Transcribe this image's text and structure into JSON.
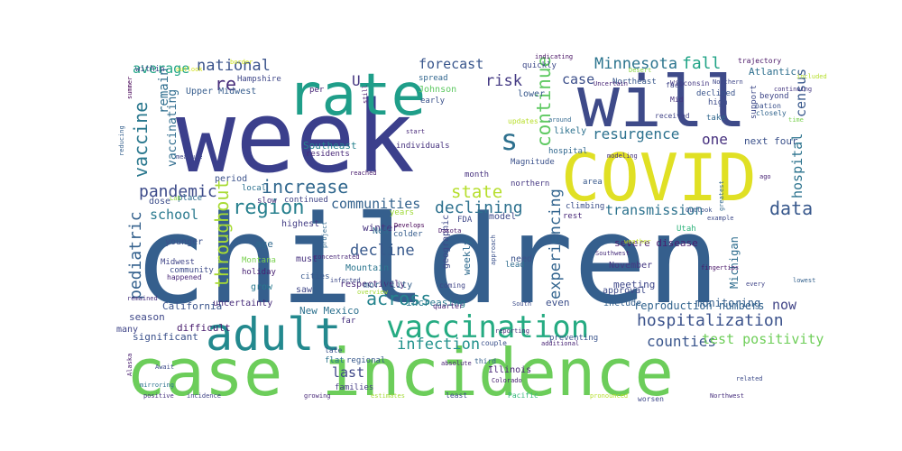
{
  "chart_data": {
    "type": "wordcloud",
    "colormap": "viridis",
    "background": "#ffffff",
    "words": [
      {
        "text": "week",
        "color": "#3b3f8c"
      },
      {
        "text": "children",
        "color": "#355f8d"
      },
      {
        "text": "case incidence",
        "color": "#6ccd5a"
      },
      {
        "text": "COVID",
        "color": "#e0e024"
      },
      {
        "text": "will",
        "color": "#3e4a89"
      },
      {
        "text": "rate",
        "color": "#1f9e89"
      },
      {
        "text": "adult",
        "color": "#23898e"
      },
      {
        "text": "vaccination",
        "color": "#25ab82"
      },
      {
        "text": "s",
        "color": "#2d708e"
      },
      {
        "text": "hospitalization",
        "color": "#3b528b"
      },
      {
        "text": "increase",
        "color": "#31688e"
      },
      {
        "text": "region",
        "color": "#27808e"
      },
      {
        "text": "pandemic",
        "color": "#3e4c8a"
      },
      {
        "text": "vaccine",
        "color": "#2a788e"
      },
      {
        "text": "national",
        "color": "#3a538b"
      },
      {
        "text": "forecast",
        "color": "#39568c"
      },
      {
        "text": "risk",
        "color": "#443a83"
      },
      {
        "text": "Minnesota",
        "color": "#2b748e"
      },
      {
        "text": "fall",
        "color": "#20a386"
      },
      {
        "text": "case",
        "color": "#3c4f8a"
      },
      {
        "text": "continue",
        "color": "#5ec962"
      },
      {
        "text": "resurgence",
        "color": "#2c718e"
      },
      {
        "text": "one",
        "color": "#46307e"
      },
      {
        "text": "state",
        "color": "#b5de2b"
      },
      {
        "text": "communities",
        "color": "#33628d"
      },
      {
        "text": "declining",
        "color": "#2d718e"
      },
      {
        "text": "transmission",
        "color": "#2c728e"
      },
      {
        "text": "data",
        "color": "#38588c"
      },
      {
        "text": "experiencing",
        "color": "#32648e"
      },
      {
        "text": "throughout",
        "color": "#a8db34"
      },
      {
        "text": "pediatric",
        "color": "#34618d"
      },
      {
        "text": "school",
        "color": "#29798e"
      },
      {
        "text": "decline",
        "color": "#38598c"
      },
      {
        "text": "across",
        "color": "#25848e"
      },
      {
        "text": "infection",
        "color": "#21918c"
      },
      {
        "text": "counties",
        "color": "#39558c"
      },
      {
        "text": "test positivity",
        "color": "#6ece58"
      },
      {
        "text": "now",
        "color": "#414487"
      },
      {
        "text": "last",
        "color": "#3f4788"
      },
      {
        "text": "average",
        "color": "#21a685"
      },
      {
        "text": "remain",
        "color": "#2e6e8e"
      },
      {
        "text": "vaccinating",
        "color": "#2f6c8e"
      },
      {
        "text": "re",
        "color": "#472d7b"
      },
      {
        "text": "census",
        "color": "#38588c"
      },
      {
        "text": "hospital",
        "color": "#2c738e"
      },
      {
        "text": "Upper Midwest",
        "color": "#365c8d"
      },
      {
        "text": "California",
        "color": "#3a548c"
      },
      {
        "text": "New Mexico",
        "color": "#2c718e"
      },
      {
        "text": "Southeast",
        "color": "#26828e"
      },
      {
        "text": "U",
        "color": "#453781"
      },
      {
        "text": "Magnitude",
        "color": "#3b518b"
      },
      {
        "text": "reproduction numbers",
        "color": "#32648e"
      },
      {
        "text": "monitoring",
        "color": "#35608d"
      },
      {
        "text": "severe disease",
        "color": "#481f70"
      },
      {
        "text": "Michigan",
        "color": "#2e6d8e"
      },
      {
        "text": "Illinois",
        "color": "#482576"
      },
      {
        "text": "next four",
        "color": "#3b518b"
      },
      {
        "text": "weekly",
        "color": "#2f6b8e"
      },
      {
        "text": "meeting",
        "color": "#3f4889"
      },
      {
        "text": "respectively",
        "color": "#482878"
      },
      {
        "text": "geographic",
        "color": "#3e4989"
      },
      {
        "text": "winter",
        "color": "#46337f"
      },
      {
        "text": "Mountain",
        "color": "#2b758e"
      },
      {
        "text": "significant",
        "color": "#3b518b"
      },
      {
        "text": "uncertainty",
        "color": "#472c7a"
      },
      {
        "text": "difficult",
        "color": "#481b6d"
      },
      {
        "text": "season",
        "color": "#3f4889"
      },
      {
        "text": "many",
        "color": "#404688"
      },
      {
        "text": "even",
        "color": "#3c4f8a"
      },
      {
        "text": "include",
        "color": "#35608d"
      },
      {
        "text": "approval",
        "color": "#3e4a89"
      },
      {
        "text": "November",
        "color": "#453882"
      },
      {
        "text": "increasing",
        "color": "#2a788e"
      },
      {
        "text": "mortality",
        "color": "#34618d"
      },
      {
        "text": "cities",
        "color": "#38588c"
      },
      {
        "text": "saw",
        "color": "#3f4788"
      },
      {
        "text": "must",
        "color": "#46307e"
      },
      {
        "text": "holiday",
        "color": "#482173"
      },
      {
        "text": "grow",
        "color": "#29798e"
      },
      {
        "text": "Montana",
        "color": "#7ad151"
      },
      {
        "text": "community",
        "color": "#3e4c8a"
      },
      {
        "text": "happened",
        "color": "#482677"
      },
      {
        "text": "Midwest",
        "color": "#404588"
      },
      {
        "text": "younger",
        "color": "#3b518b"
      },
      {
        "text": "age",
        "color": "#30698e"
      },
      {
        "text": "highest",
        "color": "#433d84"
      },
      {
        "text": "local",
        "color": "#2c718e"
      },
      {
        "text": "slow",
        "color": "#46337f"
      },
      {
        "text": "continued",
        "color": "#414487"
      },
      {
        "text": "period",
        "color": "#3b528b"
      },
      {
        "text": "place",
        "color": "#2e6e8e"
      },
      {
        "text": "dose",
        "color": "#3d4e8a"
      },
      {
        "text": "Lab",
        "color": "#8fd744"
      },
      {
        "text": "years",
        "color": "#a0da39"
      },
      {
        "text": "colder",
        "color": "#365d8d"
      },
      {
        "text": "New",
        "color": "#30698e"
      },
      {
        "text": "FDA",
        "color": "#3f4889"
      },
      {
        "text": "Dakota",
        "color": "#481769"
      },
      {
        "text": "model",
        "color": "#3e4989"
      },
      {
        "text": "need",
        "color": "#3b528b"
      },
      {
        "text": "lead",
        "color": "#2f6c8e"
      },
      {
        "text": "rest",
        "color": "#482878"
      },
      {
        "text": "climbing",
        "color": "#3c4f8a"
      },
      {
        "text": "area",
        "color": "#38598c"
      },
      {
        "text": "hospital",
        "color": "#31688e"
      },
      {
        "text": "northern",
        "color": "#453781"
      },
      {
        "text": "month",
        "color": "#46307e"
      },
      {
        "text": "individuals",
        "color": "#46327e"
      },
      {
        "text": "residents",
        "color": "#482878"
      },
      {
        "text": "likely",
        "color": "#2c718e"
      },
      {
        "text": "updates",
        "color": "#b8de29"
      },
      {
        "text": "lower",
        "color": "#38598c"
      },
      {
        "text": "quickly",
        "color": "#3e4a89"
      },
      {
        "text": "spread",
        "color": "#31668e"
      },
      {
        "text": "Johnson",
        "color": "#5ec962"
      },
      {
        "text": "early",
        "color": "#3b528b"
      },
      {
        "text": "per",
        "color": "#482677"
      },
      {
        "text": "within",
        "color": "#3e4989"
      },
      {
        "text": "summer",
        "color": "#440154"
      },
      {
        "text": "Hampshire",
        "color": "#3f4788"
      },
      {
        "text": "Northeast",
        "color": "#38588c"
      },
      {
        "text": "Atlantic",
        "color": "#2e6f8e"
      },
      {
        "text": "trajectory",
        "color": "#471365"
      },
      {
        "text": "Wisconsin",
        "color": "#453882"
      },
      {
        "text": "fact",
        "color": "#404588"
      },
      {
        "text": "Mid",
        "color": "#46327e"
      },
      {
        "text": "high",
        "color": "#3d4d8a"
      },
      {
        "text": "declined",
        "color": "#3a548c"
      },
      {
        "text": "received",
        "color": "#414487"
      },
      {
        "text": "take",
        "color": "#31688e"
      },
      {
        "text": "support",
        "color": "#3e4a89"
      },
      {
        "text": "nation",
        "color": "#3b518b"
      },
      {
        "text": "closely",
        "color": "#32658e"
      },
      {
        "text": "beyond",
        "color": "#3f4788"
      },
      {
        "text": "Uncertain",
        "color": "#482475"
      },
      {
        "text": "Desert",
        "color": "#8bd646"
      },
      {
        "text": "indicating",
        "color": "#471063"
      },
      {
        "text": "around",
        "color": "#31688e"
      },
      {
        "text": "still",
        "color": "#481a6c"
      },
      {
        "text": "start",
        "color": "#482979"
      },
      {
        "text": "coming",
        "color": "#404588"
      },
      {
        "text": "quarter",
        "color": "#482475"
      },
      {
        "text": "South",
        "color": "#3d4d8a"
      },
      {
        "text": "third",
        "color": "#34618d"
      },
      {
        "text": "far",
        "color": "#46307e"
      },
      {
        "text": "late",
        "color": "#3b518b"
      },
      {
        "text": "flat",
        "color": "#2c728e"
      },
      {
        "text": "regional",
        "color": "#38598c"
      },
      {
        "text": "families",
        "color": "#443a83"
      },
      {
        "text": "least",
        "color": "#3e4989"
      },
      {
        "text": "Colorado",
        "color": "#482071"
      },
      {
        "text": "couple",
        "color": "#3b518b"
      },
      {
        "text": "reporting",
        "color": "#472c7a"
      },
      {
        "text": "preventing",
        "color": "#3a548c"
      },
      {
        "text": "additional",
        "color": "#482475"
      },
      {
        "text": "Utah",
        "color": "#2fb47c"
      },
      {
        "text": "fingertips",
        "color": "#481467"
      },
      {
        "text": "Pacific",
        "color": "#35b779"
      },
      {
        "text": "worsen",
        "color": "#3f4889"
      },
      {
        "text": "Northwest",
        "color": "#472f7d"
      },
      {
        "text": "related",
        "color": "#3e4c8a"
      },
      {
        "text": "pronounced",
        "color": "#b5de2b"
      },
      {
        "text": "estimates",
        "color": "#a5db36"
      },
      {
        "text": "growing",
        "color": "#482878"
      },
      {
        "text": "incidence",
        "color": "#414487"
      },
      {
        "text": "positive",
        "color": "#46327e"
      },
      {
        "text": "mirroring",
        "color": "#2c738e"
      },
      {
        "text": "Await",
        "color": "#3e4c8a"
      },
      {
        "text": "Alaska",
        "color": "#481c6e"
      },
      {
        "text": "remained",
        "color": "#46307e"
      },
      {
        "text": "overview",
        "color": "#a5db36"
      },
      {
        "text": "absolute",
        "color": "#482173"
      },
      {
        "text": "approach",
        "color": "#3b518b"
      },
      {
        "text": "Develops",
        "color": "#440154"
      },
      {
        "text": "concentrated",
        "color": "#482677"
      },
      {
        "text": "reached",
        "color": "#481a6c"
      },
      {
        "text": "infected",
        "color": "#3e4a89"
      },
      {
        "text": "project",
        "color": "#30698e"
      },
      {
        "text": "measure",
        "color": "#3f4788"
      },
      {
        "text": "reducing",
        "color": "#35608d"
      },
      {
        "text": "modeling",
        "color": "#46327e"
      },
      {
        "text": "Outlook",
        "color": "#3b528b"
      },
      {
        "text": "greatest",
        "color": "#31688e"
      },
      {
        "text": "ago",
        "color": "#482475"
      },
      {
        "text": "example",
        "color": "#3e4a89"
      },
      {
        "text": "weather",
        "color": "#c2df23"
      },
      {
        "text": "Southwest",
        "color": "#472d7b"
      },
      {
        "text": "every",
        "color": "#404588"
      },
      {
        "text": "lowest",
        "color": "#34618d"
      },
      {
        "text": "border",
        "color": "#cde11d"
      },
      {
        "text": "outlook",
        "color": "#d2e21b"
      },
      {
        "text": "time",
        "color": "#7ad151"
      },
      {
        "text": "included",
        "color": "#b5de2b"
      },
      {
        "text": "continuing",
        "color": "#453781"
      },
      {
        "text": "Northern",
        "color": "#3f4788"
      }
    ]
  }
}
